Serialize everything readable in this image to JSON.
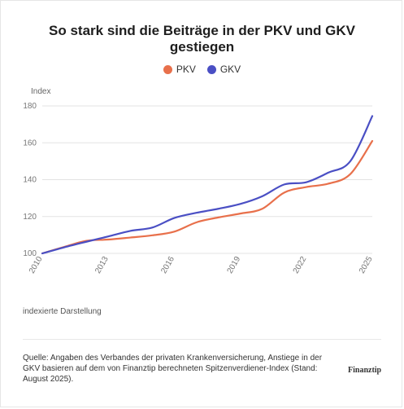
{
  "header": {
    "title_line1": "So stark sind die Beiträge in der PKV und GKV",
    "title_line2": "gestiegen"
  },
  "colors": {
    "pkv": "#e8704b",
    "gkv": "#4a4fc4",
    "grid": "#e3e3e3"
  },
  "chart_data": {
    "type": "line",
    "ylabel": "Index",
    "ylim": [
      100,
      180
    ],
    "yticks": [
      100,
      120,
      140,
      160,
      180
    ],
    "xlim": [
      2010,
      2025
    ],
    "xticks": [
      2010,
      2013,
      2016,
      2019,
      2022,
      2025
    ],
    "grid": "horizontal",
    "legend_position": "top-center",
    "series": [
      {
        "name": "PKV",
        "color": "#e8704b",
        "x": [
          2010,
          2011,
          2012,
          2013,
          2014,
          2015,
          2016,
          2017,
          2018,
          2019,
          2020,
          2021,
          2022,
          2023,
          2024,
          2025
        ],
        "y": [
          100,
          103.5,
          106.8,
          107.5,
          108.6,
          109.8,
          111.8,
          116.8,
          119.5,
          121.6,
          124.2,
          133.0,
          136.0,
          137.8,
          143.0,
          161.0
        ]
      },
      {
        "name": "GKV",
        "color": "#4a4fc4",
        "x": [
          2010,
          2011,
          2012,
          2013,
          2014,
          2015,
          2016,
          2017,
          2018,
          2019,
          2020,
          2021,
          2022,
          2023,
          2024,
          2025
        ],
        "y": [
          100,
          103.3,
          106.3,
          109.2,
          112.2,
          114.0,
          119.2,
          122.0,
          124.2,
          126.8,
          131.0,
          137.4,
          138.6,
          143.8,
          150.0,
          174.5
        ]
      }
    ]
  },
  "notes": {
    "indexed": "indexierte Darstellung",
    "source": "Quelle: Angaben des Verbandes der privaten Krankenversicherung, Anstiege in der GKV basieren auf dem von Finanztip berechneten Spitzenverdiener-Index (Stand: August 2025).",
    "logo": "Finanztip"
  }
}
